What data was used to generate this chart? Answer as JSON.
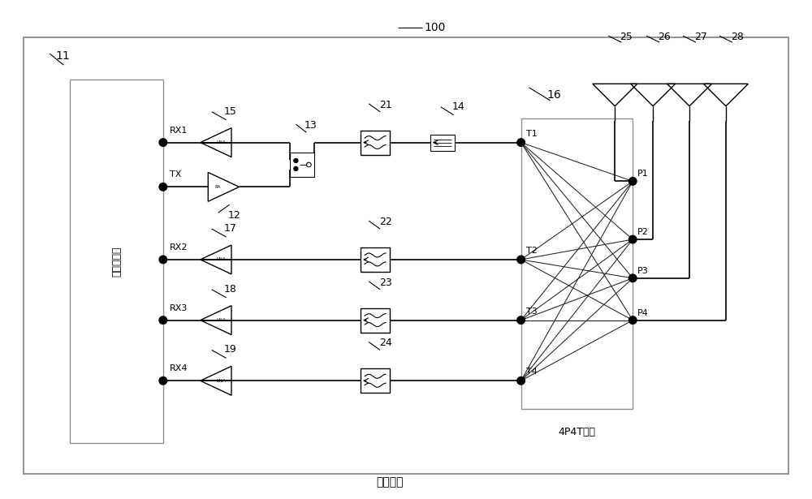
{
  "bg_color": "#ffffff",
  "label_100": "100",
  "label_11": "11",
  "label_16": "16",
  "label_transceiver": "射频收发器",
  "label_circuit": "射频电路",
  "label_4p4t": "4P4T开关",
  "rx_labels": [
    "RX1",
    "TX",
    "RX2",
    "RX3",
    "RX4"
  ],
  "lna_labels": {
    "RX1": "15",
    "TX": "12",
    "RX2": "17",
    "RX3": "18",
    "RX4": "19"
  },
  "filter_labels": [
    "21",
    "22",
    "23",
    "24"
  ],
  "t_labels": [
    "T1",
    "T2",
    "T3",
    "T4"
  ],
  "p_labels": [
    "P1",
    "P2",
    "P3",
    "P4"
  ],
  "ant_labels": [
    "25",
    "26",
    "27",
    "28"
  ],
  "other_labels": [
    "13",
    "14"
  ]
}
